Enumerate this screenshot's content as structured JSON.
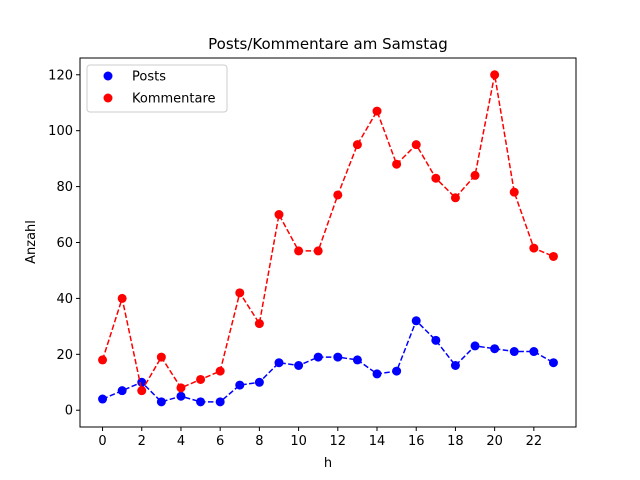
{
  "chart_data": {
    "type": "line",
    "title": "Posts/Kommentare am Samstag",
    "xlabel": "h",
    "ylabel": "Anzahl",
    "x": [
      0,
      1,
      2,
      3,
      4,
      5,
      6,
      7,
      8,
      9,
      10,
      11,
      12,
      13,
      14,
      15,
      16,
      17,
      18,
      19,
      20,
      21,
      22,
      23
    ],
    "xlim": [
      -1.15,
      24.15
    ],
    "ylim": [
      -6,
      126
    ],
    "xticks": [
      0,
      2,
      4,
      6,
      8,
      10,
      12,
      14,
      16,
      18,
      20,
      22
    ],
    "yticks": [
      0,
      20,
      40,
      60,
      80,
      100,
      120
    ],
    "grid": false,
    "legend_position": "top-left",
    "series": [
      {
        "name": "Posts",
        "color": "#0000ff",
        "linestyle": "dashed",
        "marker": "circle",
        "values": [
          4,
          7,
          10,
          3,
          5,
          3,
          3,
          9,
          10,
          17,
          16,
          19,
          19,
          18,
          13,
          14,
          32,
          25,
          16,
          23,
          22,
          21,
          21,
          17
        ]
      },
      {
        "name": "Kommentare",
        "color": "#ff0000",
        "linestyle": "dashed",
        "marker": "circle",
        "values": [
          18,
          40,
          7,
          19,
          8,
          11,
          14,
          42,
          31,
          70,
          57,
          57,
          77,
          95,
          107,
          88,
          95,
          83,
          76,
          84,
          120,
          78,
          58,
          55
        ]
      }
    ]
  }
}
